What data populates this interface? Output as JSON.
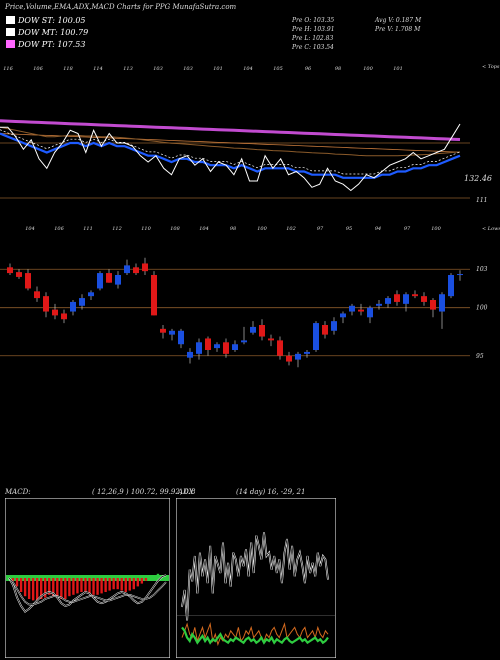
{
  "header": {
    "title": "Price,Volume,EMA,ADX,MACD Charts for PPG MunafaSutra.com",
    "legend": [
      {
        "label": "DOW ST: 100.05",
        "color": "#ffffff"
      },
      {
        "label": "DOW MT: 100.79",
        "color": "#ffffff"
      },
      {
        "label": "DOW PT: 107.53",
        "color": "#ff66ff"
      }
    ],
    "quote": {
      "open": "Pre O: 103.35",
      "high": "Pre H: 103.91",
      "low": "Pre L: 102.83",
      "close": "Pre C: 103.54",
      "avg_vol": "Avg V: 0.187 M",
      "pre_vol": "Pre V: 1.708 M"
    }
  },
  "colors": {
    "up": "#1a4fe0",
    "down": "#e01818",
    "orange": "#c87a3c",
    "grid": "#8a5a2a"
  },
  "chart_data": [
    {
      "type": "line",
      "name": "ema-panel",
      "top_ticks": [
        "116",
        "106",
        "118",
        "114",
        "113",
        "103",
        "103",
        "101",
        "104",
        "105",
        "96",
        "98",
        "100",
        "101"
      ],
      "right_label": "< Tops",
      "level_labels": [
        "132.46",
        "111"
      ],
      "price": [
        131,
        131,
        128,
        124,
        127,
        121,
        118,
        123,
        126,
        130,
        129,
        123,
        130,
        125,
        129,
        126,
        126,
        125,
        122,
        120,
        122,
        118,
        116,
        121,
        122,
        119,
        121,
        117,
        120,
        119,
        116,
        121,
        114,
        114,
        122,
        118,
        121,
        116,
        117,
        115,
        112,
        113,
        118,
        114,
        113,
        111,
        113,
        116,
        115,
        117,
        119,
        120,
        121,
        123,
        121,
        122,
        123,
        124,
        128,
        132
      ],
      "ema_fast": [
        129,
        128,
        127,
        126,
        125,
        124,
        123,
        124,
        125,
        126,
        126,
        125,
        126,
        125,
        126,
        125,
        125,
        124,
        123,
        122,
        122,
        121,
        120,
        121,
        121,
        120,
        120,
        119,
        119,
        119,
        118,
        119,
        118,
        117,
        118,
        118,
        118,
        118,
        117,
        117,
        116,
        116,
        116,
        116,
        115,
        115,
        115,
        115,
        115,
        116,
        116,
        117,
        117,
        118,
        118,
        119,
        119,
        120,
        121,
        122
      ],
      "ema_slow": [
        131,
        130.5,
        130,
        129.5,
        129,
        128.5,
        128,
        128,
        128.2,
        128.4,
        128.4,
        128.2,
        128.2,
        128,
        128,
        127.8,
        127.6,
        127.4,
        127.1,
        126.8,
        126.5,
        126.2,
        125.9,
        125.8,
        125.6,
        125.4,
        125.2,
        125,
        124.8,
        124.6,
        124.4,
        124.3,
        124.1,
        123.9,
        123.8,
        123.6,
        123.5,
        123.4,
        123.2,
        123.1,
        122.9,
        122.8,
        122.7,
        122.5,
        122.4,
        122.3,
        122.1,
        122,
        122,
        122,
        122,
        122,
        122.1,
        122.2,
        122.3,
        122.4,
        122.6,
        122.8,
        123,
        123.2
      ],
      "ema_long": [
        133,
        132.9,
        132.8,
        132.7,
        132.6,
        132.5,
        132.4,
        132.3,
        132.2,
        132.1,
        132,
        131.9,
        131.8,
        131.7,
        131.6,
        131.5,
        131.4,
        131.3,
        131.2,
        131.1,
        131,
        130.9,
        130.8,
        130.7,
        130.6,
        130.5,
        130.4,
        130.3,
        130.2,
        130.1,
        130,
        129.9,
        129.8,
        129.7,
        129.6,
        129.5,
        129.4,
        129.3,
        129.2,
        129.1,
        129,
        128.9,
        128.8,
        128.7,
        128.6,
        128.5,
        128.4,
        128.3,
        128.2,
        128.1,
        128,
        127.9,
        127.8,
        127.7,
        127.6,
        127.5,
        127.4,
        127.3,
        127.2,
        127.1
      ]
    },
    {
      "type": "candlestick",
      "name": "price-panel",
      "top_ticks": [
        "104",
        "106",
        "111",
        "112",
        "110",
        "108",
        "104",
        "98",
        "100",
        "102",
        "97",
        "95",
        "94",
        "97",
        "100"
      ],
      "right_label": "< Lows",
      "y_labels": [
        "103",
        "100",
        "95"
      ],
      "ylim": [
        93,
        106
      ],
      "candles": [
        {
          "o": 104.2,
          "h": 104.6,
          "l": 103.4,
          "c": 103.6
        },
        {
          "o": 103.7,
          "h": 104.0,
          "l": 103.0,
          "c": 103.2
        },
        {
          "o": 103.6,
          "h": 104.0,
          "l": 101.8,
          "c": 102.0
        },
        {
          "o": 101.7,
          "h": 102.2,
          "l": 100.6,
          "c": 101.0
        },
        {
          "o": 101.2,
          "h": 101.6,
          "l": 99.0,
          "c": 99.6
        },
        {
          "o": 99.8,
          "h": 100.4,
          "l": 98.8,
          "c": 99.2
        },
        {
          "o": 99.4,
          "h": 99.8,
          "l": 98.4,
          "c": 98.8
        },
        {
          "o": 99.6,
          "h": 100.8,
          "l": 99.2,
          "c": 100.6
        },
        {
          "o": 100.2,
          "h": 101.4,
          "l": 99.8,
          "c": 101.0
        },
        {
          "o": 101.2,
          "h": 101.8,
          "l": 100.8,
          "c": 101.6
        },
        {
          "o": 102.0,
          "h": 103.8,
          "l": 101.8,
          "c": 103.6
        },
        {
          "o": 103.6,
          "h": 104.0,
          "l": 102.6,
          "c": 102.6
        },
        {
          "o": 102.4,
          "h": 103.8,
          "l": 102.0,
          "c": 103.4
        },
        {
          "o": 103.6,
          "h": 105.0,
          "l": 103.4,
          "c": 104.4
        },
        {
          "o": 104.2,
          "h": 104.6,
          "l": 103.4,
          "c": 103.6
        },
        {
          "o": 104.6,
          "h": 105.2,
          "l": 103.4,
          "c": 103.8
        },
        {
          "o": 103.4,
          "h": 103.8,
          "l": 99.2,
          "c": 99.2
        },
        {
          "o": 97.8,
          "h": 98.2,
          "l": 96.8,
          "c": 97.4
        },
        {
          "o": 97.2,
          "h": 97.8,
          "l": 96.6,
          "c": 97.6
        },
        {
          "o": 96.2,
          "h": 97.8,
          "l": 95.8,
          "c": 97.6
        },
        {
          "o": 94.8,
          "h": 95.8,
          "l": 94.2,
          "c": 95.4
        },
        {
          "o": 95.2,
          "h": 96.8,
          "l": 94.6,
          "c": 96.4
        },
        {
          "o": 96.8,
          "h": 97.0,
          "l": 95.0,
          "c": 95.6
        },
        {
          "o": 95.8,
          "h": 96.4,
          "l": 95.4,
          "c": 96.2
        },
        {
          "o": 96.4,
          "h": 96.8,
          "l": 94.8,
          "c": 95.2
        },
        {
          "o": 95.6,
          "h": 96.6,
          "l": 95.4,
          "c": 96.2
        },
        {
          "o": 96.4,
          "h": 98.0,
          "l": 96.2,
          "c": 96.6
        },
        {
          "o": 97.4,
          "h": 98.6,
          "l": 97.2,
          "c": 98.0
        },
        {
          "o": 98.2,
          "h": 98.8,
          "l": 96.6,
          "c": 97.0
        },
        {
          "o": 96.8,
          "h": 97.2,
          "l": 96.0,
          "c": 96.6
        },
        {
          "o": 96.6,
          "h": 97.0,
          "l": 94.6,
          "c": 95.0
        },
        {
          "o": 95.0,
          "h": 95.4,
          "l": 94.0,
          "c": 94.4
        },
        {
          "o": 94.6,
          "h": 95.4,
          "l": 93.8,
          "c": 95.2
        },
        {
          "o": 95.2,
          "h": 95.6,
          "l": 94.8,
          "c": 95.4
        },
        {
          "o": 95.6,
          "h": 98.6,
          "l": 95.4,
          "c": 98.4
        },
        {
          "o": 98.2,
          "h": 98.6,
          "l": 96.8,
          "c": 97.2
        },
        {
          "o": 97.6,
          "h": 99.0,
          "l": 97.2,
          "c": 98.6
        },
        {
          "o": 99.0,
          "h": 99.6,
          "l": 98.4,
          "c": 99.4
        },
        {
          "o": 99.6,
          "h": 100.4,
          "l": 99.2,
          "c": 100.2
        },
        {
          "o": 99.8,
          "h": 100.4,
          "l": 99.2,
          "c": 99.6
        },
        {
          "o": 99.0,
          "h": 100.2,
          "l": 98.4,
          "c": 100.0
        },
        {
          "o": 100.2,
          "h": 100.8,
          "l": 99.8,
          "c": 100.4
        },
        {
          "o": 100.4,
          "h": 101.2,
          "l": 100.0,
          "c": 101.0
        },
        {
          "o": 101.4,
          "h": 101.8,
          "l": 100.2,
          "c": 100.6
        },
        {
          "o": 100.4,
          "h": 101.6,
          "l": 99.6,
          "c": 101.4
        },
        {
          "o": 101.4,
          "h": 101.8,
          "l": 101.0,
          "c": 101.2
        },
        {
          "o": 101.2,
          "h": 101.6,
          "l": 100.2,
          "c": 100.6
        },
        {
          "o": 100.8,
          "h": 101.0,
          "l": 99.0,
          "c": 99.8
        },
        {
          "o": 99.6,
          "h": 101.6,
          "l": 97.8,
          "c": 101.4
        },
        {
          "o": 101.2,
          "h": 103.6,
          "l": 101.0,
          "c": 103.4
        },
        {
          "o": 103.4,
          "h": 103.9,
          "l": 102.8,
          "c": 103.5
        }
      ]
    },
    {
      "type": "bar",
      "name": "macd-panel",
      "label": "MACD:",
      "params": "( 12,26,9 ) 100.72, 99.92, 0.8",
      "histogram": [
        0,
        -0.2,
        -0.6,
        -1.0,
        -1.3,
        -1.5,
        -1.6,
        -1.6,
        -1.5,
        -1.4,
        -1.2,
        -1.3,
        -1.4,
        -1.5,
        -1.5,
        -1.3,
        -1.2,
        -1.1,
        -1.0,
        -1.0,
        -1.1,
        -1.2,
        -1.2,
        -1.1,
        -1.0,
        -0.9,
        -0.8,
        -0.8,
        -0.9,
        -1.0,
        -0.9,
        -0.8,
        -0.6,
        -0.4,
        -0.2,
        0.1,
        0.2,
        0.3,
        0.2,
        0.1
      ],
      "macd": [
        0,
        -0.5,
        -1.4,
        -2.0,
        -2.4,
        -2.2,
        -1.9,
        -1.6,
        -1.3,
        -1.1,
        -1.0,
        -1.1,
        -1.4,
        -1.8,
        -2.0,
        -1.9,
        -1.6,
        -1.4,
        -1.2,
        -1.0,
        -1.1,
        -1.4,
        -1.7,
        -1.8,
        -1.7,
        -1.5,
        -1.3,
        -1.1,
        -1.0,
        -1.1,
        -1.3,
        -1.6,
        -1.8,
        -1.7,
        -1.4,
        -1.0,
        -0.6,
        -0.2,
        0.1,
        0.2
      ],
      "signal": [
        0,
        -0.3,
        -0.8,
        -1.3,
        -1.7,
        -1.9,
        -1.9,
        -1.8,
        -1.7,
        -1.5,
        -1.4,
        -1.3,
        -1.3,
        -1.4,
        -1.6,
        -1.7,
        -1.7,
        -1.6,
        -1.5,
        -1.4,
        -1.3,
        -1.3,
        -1.4,
        -1.5,
        -1.6,
        -1.6,
        -1.5,
        -1.4,
        -1.3,
        -1.2,
        -1.2,
        -1.3,
        -1.4,
        -1.5,
        -1.5,
        -1.4,
        -1.2,
        -0.9,
        -0.6,
        -0.3
      ],
      "zero_line": [
        0,
        0,
        0.1,
        0.1,
        0.1,
        0.1,
        0,
        0,
        0,
        0.1,
        0.1,
        0.1,
        0,
        0,
        0,
        0.1,
        0.1,
        0.1,
        0.1,
        0,
        0,
        0,
        0.1,
        0.1,
        0.1,
        0,
        0,
        0,
        0.1,
        0.1,
        0.1,
        0,
        0,
        0,
        0.1,
        0.1,
        0,
        0,
        0,
        0.1
      ]
    },
    {
      "type": "line",
      "name": "adx-panel",
      "label": "ADX",
      "params": "(14 day) 16, -29, 21",
      "plus_di_series": [
        30,
        40,
        22,
        52,
        45,
        60,
        38,
        62,
        48,
        58,
        44,
        66,
        38,
        60,
        55,
        50,
        68,
        44,
        56,
        42,
        62,
        58,
        48,
        60,
        54,
        64,
        48,
        68,
        50,
        72,
        66,
        58,
        74,
        60,
        62,
        52,
        60,
        50,
        58,
        44,
        62,
        70,
        52,
        66,
        48,
        58,
        62,
        54,
        44,
        60,
        50,
        56,
        48,
        62,
        54,
        60,
        58,
        46
      ],
      "adx_series": [
        18,
        16,
        12,
        10,
        14,
        12,
        9,
        11,
        13,
        10,
        12,
        9,
        11,
        10,
        12,
        14,
        11,
        10,
        9,
        11,
        10,
        12,
        11,
        10,
        9,
        11,
        12,
        10,
        11,
        9,
        10,
        12,
        9,
        11,
        10,
        12,
        9,
        11,
        10,
        9,
        11,
        12,
        10,
        9,
        10,
        11,
        12,
        10,
        11,
        9,
        10,
        11,
        12,
        10,
        11,
        9,
        10,
        12
      ],
      "minus_di_series": [
        12,
        16,
        20,
        14,
        12,
        18,
        10,
        14,
        18,
        12,
        16,
        20,
        10,
        14,
        8,
        12,
        10,
        14,
        12,
        16,
        14,
        12,
        18,
        10,
        12,
        16,
        14,
        18,
        12,
        14,
        16,
        12,
        10,
        14,
        12,
        16,
        18,
        14,
        12,
        16,
        20,
        12,
        14,
        16,
        18,
        14,
        12,
        16,
        18,
        12,
        14,
        16,
        12,
        18,
        14,
        12,
        16,
        14
      ]
    }
  ]
}
